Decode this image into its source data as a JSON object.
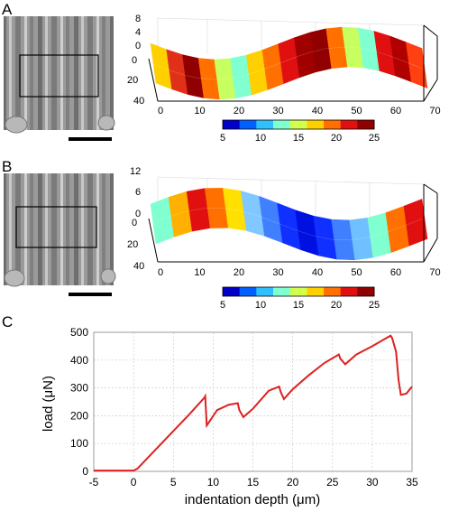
{
  "panels": {
    "a": {
      "letter": "A"
    },
    "b": {
      "letter": "B"
    },
    "c": {
      "letter": "C"
    }
  },
  "surface_axes": {
    "z_ticks_a": [
      "8",
      "4",
      "0"
    ],
    "z_ticks_b": [
      "12",
      "6",
      "0"
    ],
    "y_ticks": [
      "0",
      "20",
      "40"
    ],
    "x_ticks": [
      "0",
      "10",
      "20",
      "30",
      "40",
      "50",
      "60",
      "70"
    ]
  },
  "colorbar": {
    "ticks": [
      "5",
      "10",
      "15",
      "20",
      "25"
    ],
    "colors": [
      "#0000c8",
      "#0060ff",
      "#30c0ff",
      "#80ffd0",
      "#d0ff50",
      "#ffd000",
      "#ff7000",
      "#e01010",
      "#900000"
    ]
  },
  "panel_a_surface_colors": [
    "#ffd000",
    "#e03018",
    "#900000",
    "#ff7000",
    "#c8ff60",
    "#80ffd0",
    "#ffd000",
    "#ff7000",
    "#e01010",
    "#a00000",
    "#900000",
    "#ff7000",
    "#c8ff60",
    "#80ffd0",
    "#e01010",
    "#b00000",
    "#ff4010"
  ],
  "panel_b_surface_colors": [
    "#80ffd0",
    "#ffb000",
    "#e01010",
    "#ff7000",
    "#ffe000",
    "#80c8ff",
    "#4080ff",
    "#1030ff",
    "#0010e0",
    "#1030ff",
    "#4080ff",
    "#70c0ff",
    "#80ffd0",
    "#ff7000",
    "#e01010"
  ],
  "chart_data": {
    "type": "line",
    "xlabel": "indentation depth (μm)",
    "ylabel": "load (μN)",
    "xlim": [
      -5,
      35
    ],
    "ylim": [
      0,
      500
    ],
    "x_ticks": [
      -5,
      0,
      5,
      10,
      15,
      20,
      25,
      30,
      35
    ],
    "y_ticks": [
      0,
      100,
      200,
      300,
      400,
      500
    ],
    "grid": true,
    "color": "#e02020",
    "series": [
      {
        "x": [
          -5,
          0,
          0.5,
          3,
          5,
          7,
          8.9,
          9.0,
          9.2,
          10.5,
          12,
          13.1,
          13.3,
          13.8,
          15,
          17,
          18.3,
          18.5,
          18.9,
          20,
          22,
          24,
          25.8,
          26.0,
          26.6,
          28,
          30,
          31.5,
          32.3,
          32.5,
          33.0,
          33.3,
          33.6,
          34.3,
          35
        ],
        "y": [
          3,
          3,
          10,
          85,
          145,
          205,
          265,
          270,
          165,
          220,
          240,
          245,
          220,
          195,
          225,
          290,
          305,
          285,
          260,
          295,
          345,
          390,
          420,
          405,
          385,
          420,
          450,
          475,
          488,
          480,
          430,
          330,
          275,
          280,
          305
        ]
      }
    ]
  }
}
